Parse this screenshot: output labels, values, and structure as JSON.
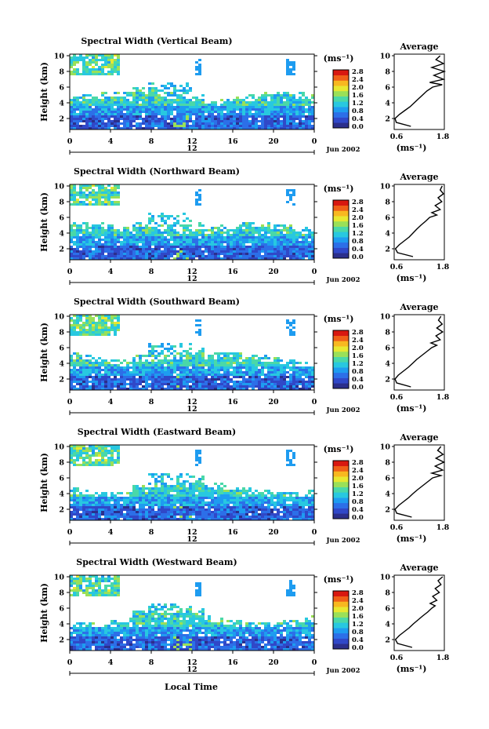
{
  "figure": {
    "xlabel": "Local Time",
    "x_ticks": [
      "0",
      "4",
      "8",
      "12",
      "16",
      "20",
      "0"
    ],
    "date_label": "Jun 2002",
    "date_marker": "12",
    "y_label": "Height (km)",
    "y_ticks": [
      "2",
      "4",
      "6",
      "8",
      "10"
    ],
    "colorbar_unit": "(ms⁻¹)",
    "colorbar_ticks": [
      "0.0",
      "0.4",
      "0.8",
      "1.2",
      "1.6",
      "2.0",
      "2.4",
      "2.8"
    ],
    "colorbar_colors": [
      "#2b2f8c",
      "#3048c8",
      "#2c6fe8",
      "#1e9cf0",
      "#28c8e0",
      "#4ad8a8",
      "#9ae058",
      "#e8e830",
      "#f8b820",
      "#f06018",
      "#d81810"
    ],
    "profile_title": "Average",
    "profile_unit": "(ms⁻¹)",
    "profile_y_ticks": [
      "2",
      "4",
      "6",
      "8",
      "10"
    ]
  },
  "chart_data": [
    {
      "type": "heatmap",
      "title": "Spectral Width (Vertical Beam)",
      "profile": {
        "xtick_labels": [
          "0.6",
          "1.8"
        ],
        "height": [
          1,
          1.5,
          2,
          2.5,
          3,
          3.5,
          4,
          4.5,
          5,
          5.5,
          6,
          6.3,
          6.6,
          7,
          7.5,
          8,
          8.5,
          9,
          9.5,
          10
        ],
        "width": [
          1.0,
          0.65,
          0.62,
          0.72,
          0.85,
          0.98,
          1.08,
          1.18,
          1.28,
          1.38,
          1.52,
          1.75,
          1.45,
          1.78,
          1.55,
          1.8,
          1.5,
          1.78,
          1.6,
          1.7
        ]
      }
    },
    {
      "type": "heatmap",
      "title": "Spectral Width (Northward Beam)",
      "profile": {
        "xtick_labels": [
          "0.6",
          "1.8"
        ],
        "height": [
          1,
          1.5,
          2,
          2.5,
          3,
          3.5,
          4,
          4.5,
          5,
          5.5,
          6,
          6.3,
          6.6,
          7,
          7.5,
          8,
          8.5,
          9,
          9.5,
          10
        ],
        "width": [
          1.05,
          0.68,
          0.63,
          0.72,
          0.84,
          0.96,
          1.05,
          1.14,
          1.24,
          1.35,
          1.45,
          1.62,
          1.5,
          1.7,
          1.58,
          1.74,
          1.65,
          1.78,
          1.7,
          1.75
        ]
      }
    },
    {
      "type": "heatmap",
      "title": "Spectral Width (Southward Beam)",
      "profile": {
        "xtick_labels": [
          "0.6",
          "1.8"
        ],
        "height": [
          1,
          1.5,
          2,
          2.5,
          3,
          3.5,
          4,
          4.5,
          5,
          5.5,
          6,
          6.3,
          6.6,
          7,
          7.5,
          8,
          8.5,
          9,
          9.5,
          10
        ],
        "width": [
          1.0,
          0.66,
          0.62,
          0.7,
          0.82,
          0.94,
          1.04,
          1.14,
          1.26,
          1.38,
          1.5,
          1.62,
          1.48,
          1.7,
          1.6,
          1.76,
          1.62,
          1.75,
          1.66,
          1.72
        ]
      }
    },
    {
      "type": "heatmap",
      "title": "Spectral Width (Eastward Beam)",
      "profile": {
        "xtick_labels": [
          "0.6",
          "1.8"
        ],
        "height": [
          1,
          1.5,
          2,
          2.5,
          3,
          3.5,
          4,
          4.5,
          5,
          5.5,
          6,
          6.3,
          6.6,
          7,
          7.5,
          8,
          8.5,
          9,
          9.5,
          10
        ],
        "width": [
          1.02,
          0.66,
          0.62,
          0.71,
          0.83,
          0.95,
          1.05,
          1.16,
          1.28,
          1.4,
          1.52,
          1.72,
          1.5,
          1.76,
          1.58,
          1.79,
          1.6,
          1.77,
          1.64,
          1.72
        ]
      }
    },
    {
      "type": "heatmap",
      "title": "Spectral Width (Westward Beam)",
      "profile": {
        "xtick_labels": [
          "0.6",
          "1.8"
        ],
        "height": [
          1,
          1.5,
          2,
          2.5,
          3,
          3.5,
          4,
          4.5,
          5,
          5.5,
          6,
          6.3,
          6.6,
          7,
          7.5,
          8,
          8.5,
          9,
          9.5,
          10
        ],
        "width": [
          1.03,
          0.68,
          0.63,
          0.72,
          0.84,
          0.96,
          1.06,
          1.17,
          1.28,
          1.4,
          1.5,
          1.58,
          1.46,
          1.62,
          1.52,
          1.68,
          1.58,
          1.72,
          1.65,
          1.76
        ]
      }
    }
  ]
}
